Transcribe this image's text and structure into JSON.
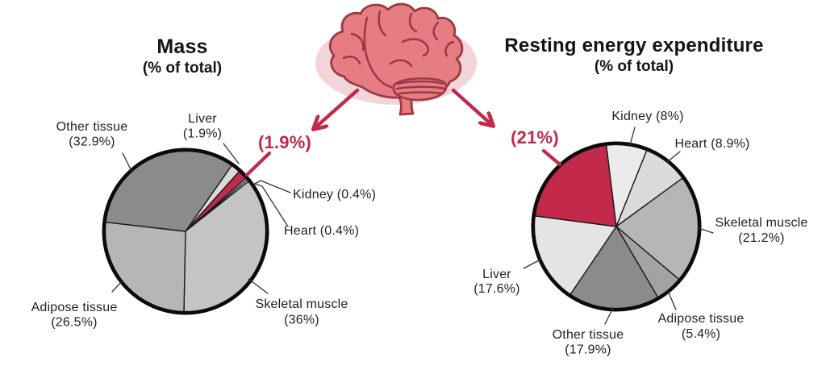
{
  "figure": {
    "background": "#ffffff",
    "accent_color": "#c2294a",
    "text_color": "#1f1f1f",
    "brain_fill_color": "#e57d82",
    "brain_outline_color": "#9b3a45",
    "brain_halo_color": "#f2d5d8"
  },
  "chart_data": [
    {
      "id": "mass",
      "type": "pie",
      "title": "Mass",
      "subtitle": "(% of total)",
      "start_angle_deg": 35,
      "clockwise": true,
      "slices": [
        {
          "name": "Liver",
          "value_pct": 1.9,
          "label_lines": [
            "Liver",
            "(1.9%)"
          ],
          "color": "#dadada",
          "highlight": false
        },
        {
          "name": "Brain",
          "value_pct": 1.9,
          "label_lines": [
            "(1.9%)"
          ],
          "color": "#c2294a",
          "highlight": true
        },
        {
          "name": "Kidney",
          "value_pct": 0.4,
          "label_lines": [
            "Kidney (0.4%)"
          ],
          "color": "#f7f7f7",
          "highlight": false
        },
        {
          "name": "Heart",
          "value_pct": 0.4,
          "label_lines": [
            "Heart (0.4%)"
          ],
          "color": "#ececec",
          "highlight": false
        },
        {
          "name": "Skeletal muscle",
          "value_pct": 36,
          "label_lines": [
            "Skeletal muscle",
            "(36%)"
          ],
          "color": "#c4c4c4",
          "highlight": false
        },
        {
          "name": "Adipose tissue",
          "value_pct": 26.5,
          "label_lines": [
            "Adipose tissue",
            "(26.5%)"
          ],
          "color": "#b6b6b6",
          "highlight": false
        },
        {
          "name": "Other tissue",
          "value_pct": 32.9,
          "label_lines": [
            "Other tissue",
            "(32.9%)"
          ],
          "color": "#8b8b8b",
          "highlight": false
        }
      ]
    },
    {
      "id": "ree",
      "type": "pie",
      "title": "Resting energy expenditure",
      "subtitle": "(% of total)",
      "start_angle_deg": -7,
      "clockwise": true,
      "slices": [
        {
          "name": "Kidney",
          "value_pct": 8,
          "label_lines": [
            "Kidney (8%)"
          ],
          "color": "#ebebeb",
          "highlight": false
        },
        {
          "name": "Heart",
          "value_pct": 8.9,
          "label_lines": [
            "Heart (8.9%)"
          ],
          "color": "#dbdbdb",
          "highlight": false
        },
        {
          "name": "Skeletal muscle",
          "value_pct": 21.2,
          "label_lines": [
            "Skeletal muscle",
            "(21.2%)"
          ],
          "color": "#b6b6b6",
          "highlight": false
        },
        {
          "name": "Adipose tissue",
          "value_pct": 5.4,
          "label_lines": [
            "Adipose tissue",
            "(5.4%)"
          ],
          "color": "#a3a3a3",
          "highlight": false
        },
        {
          "name": "Other tissue",
          "value_pct": 17.9,
          "label_lines": [
            "Other tissue",
            "(17.9%)"
          ],
          "color": "#8b8b8b",
          "highlight": false
        },
        {
          "name": "Liver",
          "value_pct": 17.6,
          "label_lines": [
            "Liver",
            "(17.6%)"
          ],
          "color": "#e4e4e4",
          "highlight": false
        },
        {
          "name": "Brain",
          "value_pct": 21,
          "label_lines": [
            "(21%)"
          ],
          "color": "#c2294a",
          "highlight": true
        }
      ]
    }
  ]
}
